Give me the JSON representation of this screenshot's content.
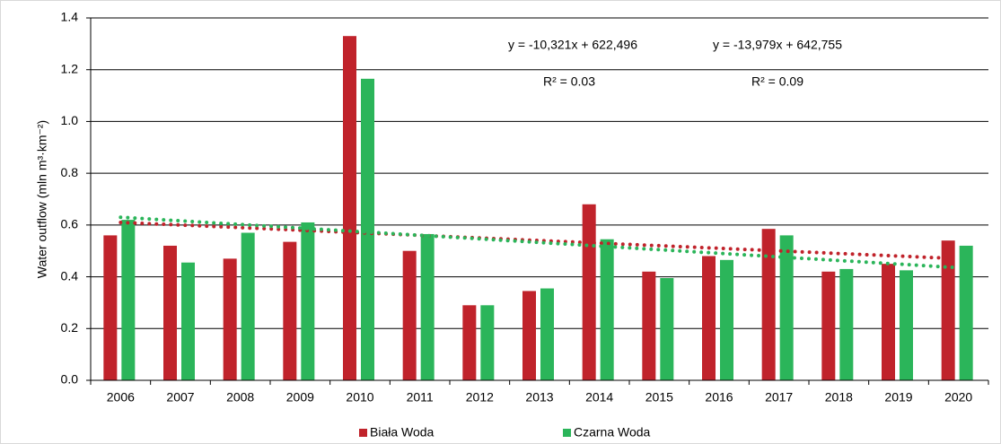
{
  "chart_data": {
    "type": "bar",
    "y_label": "Water outflow (mln m³·km⁻²)",
    "categories": [
      "2006",
      "2007",
      "2008",
      "2009",
      "2010",
      "2011",
      "2012",
      "2013",
      "2014",
      "2015",
      "2016",
      "2017",
      "2018",
      "2019",
      "2020"
    ],
    "series": [
      {
        "name": "Biała Woda",
        "color": "#c0232b",
        "values": [
          0.56,
          0.52,
          0.47,
          0.535,
          1.33,
          0.5,
          0.29,
          0.345,
          0.68,
          0.42,
          0.48,
          0.585,
          0.42,
          0.45,
          0.54
        ],
        "trendline": [
          0.61,
          0.47
        ]
      },
      {
        "name": "Czarna Woda",
        "color": "#2bb55a",
        "values": [
          0.62,
          0.455,
          0.57,
          0.61,
          1.165,
          0.565,
          0.29,
          0.355,
          0.545,
          0.395,
          0.465,
          0.56,
          0.43,
          0.425,
          0.52
        ],
        "trendline": [
          0.63,
          0.435
        ]
      }
    ],
    "ylim": [
      0,
      1.4
    ],
    "yticks": [
      {
        "value": 0,
        "label": "0.0"
      },
      0.2,
      0.4,
      0.6,
      0.8,
      {
        "value": 1,
        "label": "1.0"
      },
      1.2,
      1.4
    ],
    "grid": true,
    "annotations": [
      "y = -10,321x + 622,496",
      "y = -13,979x + 642,755",
      "R² = 0.03",
      "R² = 0.09"
    ]
  }
}
